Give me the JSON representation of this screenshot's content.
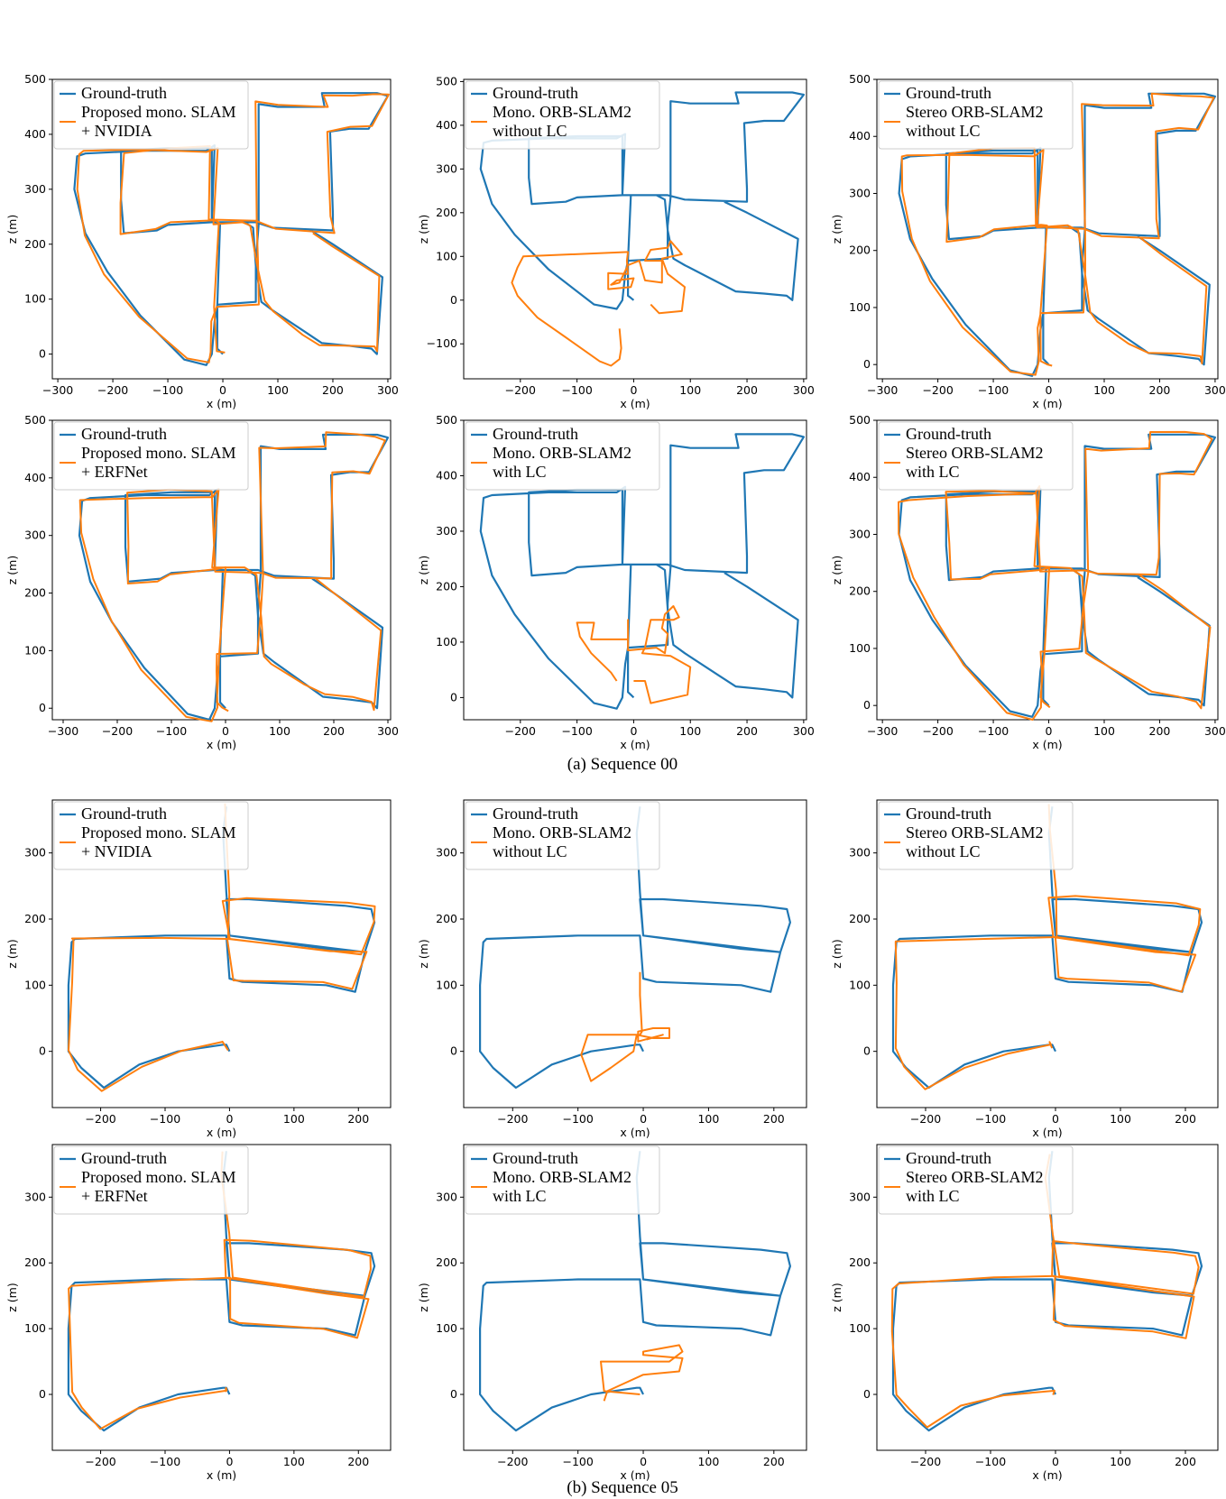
{
  "captions": {
    "seq00": "(a) Sequence 00",
    "seq05": "(b) Sequence 05"
  },
  "colors": {
    "ground_truth": "#1f77b4",
    "estimate": "#ff7f0e",
    "legend_border": "#cccccc"
  },
  "chart_data": [
    {
      "type": "line",
      "sequence": "00",
      "xlabel": "x (m)",
      "ylabel": "z (m)",
      "xticks": [
        -300,
        -200,
        -100,
        0,
        100,
        200,
        300
      ],
      "yticks": [
        0,
        100,
        200,
        300,
        400,
        500
      ],
      "xlim": [
        -310,
        305
      ],
      "ylim": [
        -45,
        500
      ],
      "legend": "upper left",
      "series": [
        {
          "name": "Ground-truth",
          "role": "gt"
        },
        {
          "name": "Proposed mono. SLAM\n+ NVIDIA",
          "role": "est"
        }
      ],
      "gt_key": "seq00",
      "est_mode": "aligned",
      "est_variant": 1
    },
    {
      "type": "line",
      "sequence": "00",
      "xlabel": "x (m)",
      "ylabel": "z (m)",
      "xticks": [
        -200,
        -100,
        0,
        100,
        200,
        300
      ],
      "yticks": [
        -100,
        0,
        100,
        200,
        300,
        400,
        500
      ],
      "xlim": [
        -300,
        305
      ],
      "ylim": [
        -180,
        505
      ],
      "legend": "upper left",
      "series": [
        {
          "name": "Ground-truth",
          "role": "gt"
        },
        {
          "name": "Mono. ORB-SLAM2\nwithout LC",
          "role": "est"
        }
      ],
      "gt_key": "seq00",
      "est_mode": "custom",
      "est_path": [
        [
          -25,
          -65
        ],
        [
          -22,
          -110
        ],
        [
          -25,
          -135
        ],
        [
          -40,
          -150
        ],
        [
          -60,
          -140
        ],
        [
          -120,
          -85
        ],
        [
          -170,
          -40
        ],
        [
          -205,
          10
        ],
        [
          -215,
          40
        ],
        [
          -205,
          75
        ],
        [
          -195,
          100
        ],
        [
          -10,
          110
        ],
        [
          -12,
          90
        ],
        [
          -10,
          60
        ],
        [
          -45,
          62
        ],
        [
          -45,
          25
        ],
        [
          -5,
          30
        ],
        [
          0,
          50
        ],
        [
          -30,
          45
        ],
        [
          -40,
          35
        ],
        [
          -25,
          40
        ],
        [
          -10,
          80
        ],
        [
          10,
          90
        ],
        [
          20,
          45
        ],
        [
          50,
          40
        ],
        [
          50,
          90
        ],
        [
          20,
          90
        ],
        [
          30,
          115
        ],
        [
          60,
          120
        ],
        [
          65,
          135
        ],
        [
          85,
          105
        ],
        [
          50,
          95
        ],
        [
          60,
          60
        ],
        [
          90,
          30
        ],
        [
          85,
          -25
        ],
        [
          45,
          -30
        ],
        [
          30,
          -10
        ]
      ]
    },
    {
      "type": "line",
      "sequence": "00",
      "xlabel": "x (m)",
      "ylabel": "z (m)",
      "xticks": [
        -300,
        -200,
        -100,
        0,
        100,
        200,
        300
      ],
      "yticks": [
        0,
        100,
        200,
        300,
        400,
        500
      ],
      "xlim": [
        -310,
        305
      ],
      "ylim": [
        -25,
        500
      ],
      "legend": "upper left",
      "series": [
        {
          "name": "Ground-truth",
          "role": "gt"
        },
        {
          "name": "Stereo ORB-SLAM2\nwithout LC",
          "role": "est"
        }
      ],
      "gt_key": "seq00",
      "est_mode": "aligned",
      "est_variant": 2
    },
    {
      "type": "line",
      "sequence": "00",
      "xlabel": "x (m)",
      "ylabel": "z (m)",
      "xticks": [
        -300,
        -200,
        -100,
        0,
        100,
        200,
        300
      ],
      "yticks": [
        0,
        100,
        200,
        300,
        400,
        500
      ],
      "xlim": [
        -320,
        305
      ],
      "ylim": [
        -20,
        500
      ],
      "legend": "upper left",
      "series": [
        {
          "name": "Ground-truth",
          "role": "gt"
        },
        {
          "name": "Proposed mono. SLAM\n+ ERFNet",
          "role": "est"
        }
      ],
      "gt_key": "seq00",
      "est_mode": "aligned",
      "est_variant": 3
    },
    {
      "type": "line",
      "sequence": "00",
      "xlabel": "x (m)",
      "ylabel": "z (m)",
      "xticks": [
        -200,
        -100,
        0,
        100,
        200,
        300
      ],
      "yticks": [
        0,
        100,
        200,
        300,
        400,
        500
      ],
      "xlim": [
        -300,
        305
      ],
      "ylim": [
        -40,
        500
      ],
      "legend": "upper left",
      "series": [
        {
          "name": "Ground-truth",
          "role": "gt"
        },
        {
          "name": "Mono. ORB-SLAM2\nwith LC",
          "role": "est"
        }
      ],
      "gt_key": "seq00",
      "est_mode": "custom",
      "est_path": [
        [
          -30,
          30
        ],
        [
          -40,
          45
        ],
        [
          -75,
          80
        ],
        [
          -95,
          110
        ],
        [
          -100,
          135
        ],
        [
          -70,
          135
        ],
        [
          -75,
          105
        ],
        [
          -10,
          105
        ],
        [
          -10,
          140
        ],
        [
          -10,
          85
        ],
        [
          40,
          90
        ],
        [
          55,
          80
        ],
        [
          60,
          115
        ],
        [
          50,
          125
        ],
        [
          55,
          150
        ],
        [
          70,
          165
        ],
        [
          80,
          145
        ],
        [
          70,
          140
        ],
        [
          30,
          140
        ],
        [
          20,
          90
        ],
        [
          15,
          80
        ],
        [
          65,
          75
        ],
        [
          100,
          55
        ],
        [
          95,
          5
        ],
        [
          30,
          -10
        ],
        [
          20,
          30
        ],
        [
          0,
          30
        ]
      ]
    },
    {
      "type": "line",
      "sequence": "00",
      "xlabel": "x (m)",
      "ylabel": "z (m)",
      "xticks": [
        -300,
        -200,
        -100,
        0,
        100,
        200,
        300
      ],
      "yticks": [
        0,
        100,
        200,
        300,
        400,
        500
      ],
      "xlim": [
        -310,
        305
      ],
      "ylim": [
        -25,
        500
      ],
      "legend": "upper left",
      "series": [
        {
          "name": "Ground-truth",
          "role": "gt"
        },
        {
          "name": "Stereo ORB-SLAM2\nwith LC",
          "role": "est"
        }
      ],
      "gt_key": "seq00",
      "est_mode": "aligned",
      "est_variant": 4
    },
    {
      "type": "line",
      "sequence": "05",
      "xlabel": "x (m)",
      "ylabel": "z (m)",
      "xticks": [
        -200,
        -100,
        0,
        100,
        200
      ],
      "yticks": [
        0,
        100,
        200,
        300
      ],
      "xlim": [
        -275,
        250
      ],
      "ylim": [
        -85,
        380
      ],
      "legend": "upper left",
      "series": [
        {
          "name": "Ground-truth",
          "role": "gt"
        },
        {
          "name": "Proposed mono. SLAM\n+ NVIDIA",
          "role": "est"
        }
      ],
      "gt_key": "seq05",
      "est_mode": "aligned",
      "est_variant": 5
    },
    {
      "type": "line",
      "sequence": "05",
      "xlabel": "x (m)",
      "ylabel": "z (m)",
      "xticks": [
        -200,
        -100,
        0,
        100,
        200
      ],
      "yticks": [
        0,
        100,
        200,
        300
      ],
      "xlim": [
        -275,
        250
      ],
      "ylim": [
        -85,
        380
      ],
      "legend": "upper left",
      "series": [
        {
          "name": "Ground-truth",
          "role": "gt"
        },
        {
          "name": "Mono. ORB-SLAM2\nwithout LC",
          "role": "est"
        }
      ],
      "gt_key": "seq05",
      "est_mode": "custom",
      "est_path": [
        [
          -5,
          120
        ],
        [
          -5,
          85
        ],
        [
          -2,
          30
        ],
        [
          -5,
          25
        ],
        [
          -40,
          25
        ],
        [
          -85,
          25
        ],
        [
          -95,
          -5
        ],
        [
          -80,
          -45
        ],
        [
          -50,
          -25
        ],
        [
          -15,
          0
        ],
        [
          -10,
          25
        ],
        [
          15,
          20
        ],
        [
          40,
          20
        ],
        [
          40,
          35
        ],
        [
          15,
          35
        ],
        [
          -8,
          30
        ],
        [
          -8,
          15
        ],
        [
          30,
          25
        ],
        [
          5,
          18
        ]
      ]
    },
    {
      "type": "line",
      "sequence": "05",
      "xlabel": "x (m)",
      "ylabel": "z (m)",
      "xticks": [
        -200,
        -100,
        0,
        100,
        200
      ],
      "yticks": [
        0,
        100,
        200,
        300
      ],
      "xlim": [
        -275,
        250
      ],
      "ylim": [
        -85,
        380
      ],
      "legend": "upper left",
      "series": [
        {
          "name": "Ground-truth",
          "role": "gt"
        },
        {
          "name": "Stereo ORB-SLAM2\nwithout LC",
          "role": "est"
        }
      ],
      "gt_key": "seq05",
      "est_mode": "aligned",
      "est_variant": 6
    },
    {
      "type": "line",
      "sequence": "05",
      "xlabel": "x (m)",
      "ylabel": "z (m)",
      "xticks": [
        -200,
        -100,
        0,
        100,
        200
      ],
      "yticks": [
        0,
        100,
        200,
        300
      ],
      "xlim": [
        -275,
        250
      ],
      "ylim": [
        -85,
        380
      ],
      "legend": "upper left",
      "series": [
        {
          "name": "Ground-truth",
          "role": "gt"
        },
        {
          "name": "Proposed mono. SLAM\n+ ERFNet",
          "role": "est"
        }
      ],
      "gt_key": "seq05",
      "est_mode": "aligned",
      "est_variant": 7
    },
    {
      "type": "line",
      "sequence": "05",
      "xlabel": "x (m)",
      "ylabel": "z (m)",
      "xticks": [
        -200,
        -100,
        0,
        100,
        200
      ],
      "yticks": [
        0,
        100,
        200,
        300
      ],
      "xlim": [
        -275,
        250
      ],
      "ylim": [
        -85,
        380
      ],
      "legend": "upper left",
      "series": [
        {
          "name": "Ground-truth",
          "role": "gt"
        },
        {
          "name": "Mono. ORB-SLAM2\nwith LC",
          "role": "est"
        }
      ],
      "gt_key": "seq05",
      "est_mode": "custom",
      "est_path": [
        [
          -5,
          0
        ],
        [
          -60,
          5
        ],
        [
          -65,
          50
        ],
        [
          -5,
          50
        ],
        [
          40,
          50
        ],
        [
          60,
          65
        ],
        [
          55,
          75
        ],
        [
          0,
          65
        ],
        [
          0,
          60
        ],
        [
          60,
          55
        ],
        [
          55,
          35
        ],
        [
          0,
          30
        ],
        [
          -55,
          5
        ],
        [
          -60,
          -10
        ]
      ]
    },
    {
      "type": "line",
      "sequence": "05",
      "xlabel": "x (m)",
      "ylabel": "z (m)",
      "xticks": [
        -200,
        -100,
        0,
        100,
        200
      ],
      "yticks": [
        0,
        100,
        200,
        300
      ],
      "xlim": [
        -275,
        250
      ],
      "ylim": [
        -85,
        380
      ],
      "legend": "upper left",
      "series": [
        {
          "name": "Ground-truth",
          "role": "gt"
        },
        {
          "name": "Stereo ORB-SLAM2\nwith LC",
          "role": "est"
        }
      ],
      "gt_key": "seq05",
      "est_mode": "aligned",
      "est_variant": 8
    }
  ],
  "trajectories": {
    "seq00": [
      [
        0,
        0
      ],
      [
        -5,
        5
      ],
      [
        -10,
        10
      ],
      [
        -10,
        90
      ],
      [
        -5,
        240
      ],
      [
        -20,
        240
      ],
      [
        -100,
        235
      ],
      [
        -120,
        225
      ],
      [
        -180,
        220
      ],
      [
        -185,
        280
      ],
      [
        -185,
        370
      ],
      [
        -100,
        375
      ],
      [
        -20,
        375
      ],
      [
        -20,
        240
      ],
      [
        60,
        240
      ],
      [
        90,
        230
      ],
      [
        200,
        225
      ],
      [
        200,
        255
      ],
      [
        195,
        405
      ],
      [
        230,
        410
      ],
      [
        265,
        410
      ],
      [
        300,
        470
      ],
      [
        280,
        475
      ],
      [
        240,
        475
      ],
      [
        180,
        475
      ],
      [
        185,
        450
      ],
      [
        100,
        450
      ],
      [
        65,
        455
      ],
      [
        65,
        235
      ],
      [
        60,
        170
      ],
      [
        60,
        95
      ],
      [
        -10,
        90
      ],
      [
        -15,
        60
      ],
      [
        -20,
        0
      ],
      [
        -30,
        -20
      ],
      [
        -70,
        -10
      ],
      [
        -150,
        70
      ],
      [
        -210,
        150
      ],
      [
        -250,
        220
      ],
      [
        -270,
        300
      ],
      [
        -265,
        360
      ],
      [
        -250,
        365
      ],
      [
        -150,
        370
      ],
      [
        -30,
        370
      ],
      [
        -15,
        380
      ],
      [
        -20,
        240
      ],
      [
        40,
        240
      ],
      [
        55,
        230
      ],
      [
        60,
        160
      ],
      [
        70,
        95
      ],
      [
        90,
        80
      ],
      [
        150,
        40
      ],
      [
        180,
        20
      ],
      [
        230,
        15
      ],
      [
        270,
        10
      ],
      [
        280,
        0
      ],
      [
        290,
        140
      ],
      [
        200,
        200
      ],
      [
        160,
        225
      ]
    ],
    "seq05": [
      [
        0,
        0
      ],
      [
        -5,
        10
      ],
      [
        -10,
        10
      ],
      [
        -80,
        0
      ],
      [
        -140,
        -20
      ],
      [
        -195,
        -55
      ],
      [
        -230,
        -25
      ],
      [
        -250,
        0
      ],
      [
        -250,
        100
      ],
      [
        -245,
        165
      ],
      [
        -240,
        170
      ],
      [
        -100,
        175
      ],
      [
        -5,
        175
      ],
      [
        0,
        110
      ],
      [
        20,
        105
      ],
      [
        150,
        100
      ],
      [
        195,
        90
      ],
      [
        210,
        150
      ],
      [
        150,
        155
      ],
      [
        0,
        175
      ],
      [
        -5,
        230
      ],
      [
        30,
        230
      ],
      [
        180,
        220
      ],
      [
        220,
        215
      ],
      [
        225,
        195
      ],
      [
        210,
        150
      ],
      [
        0,
        175
      ],
      [
        -5,
        240
      ],
      [
        -10,
        330
      ],
      [
        -5,
        370
      ]
    ]
  }
}
